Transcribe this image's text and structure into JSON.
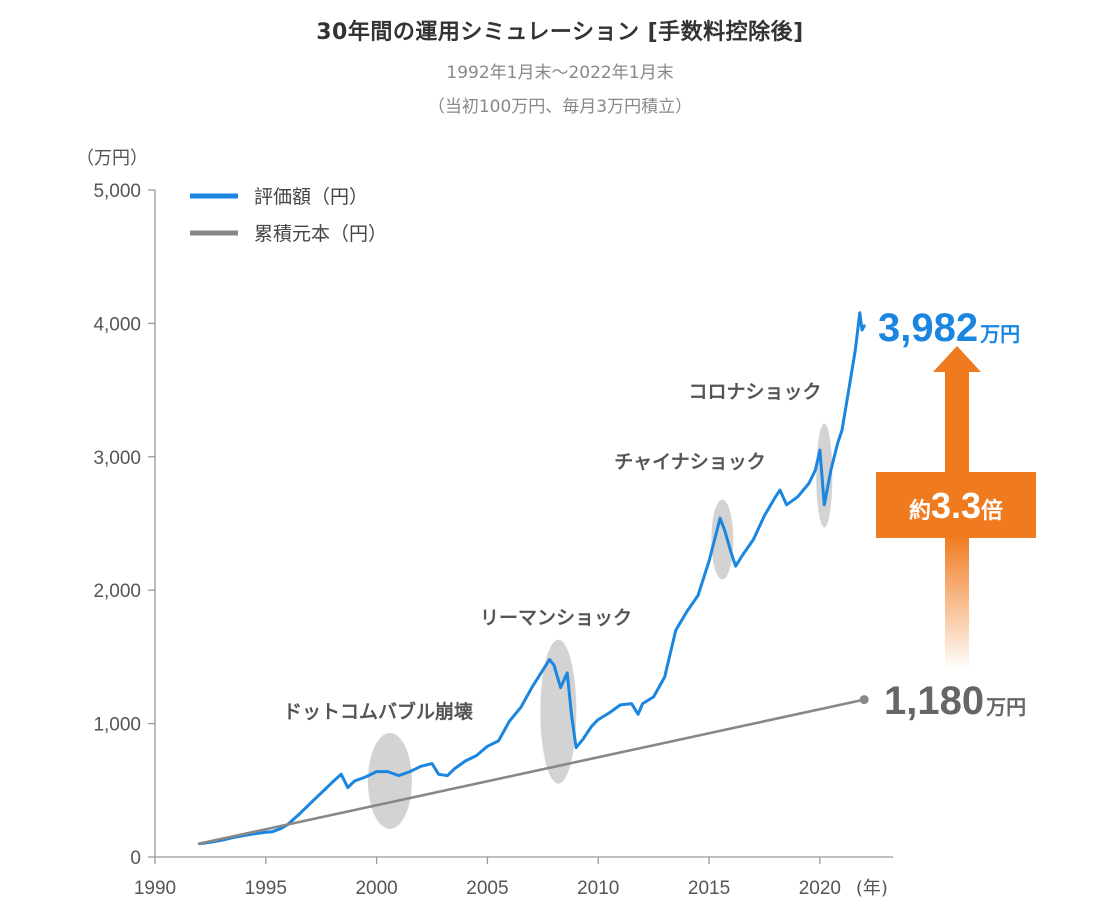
{
  "header": {
    "title": "30年間の運用シミュレーション [手数料控除後]",
    "subtitle_period": "1992年1月末〜2022年1月末",
    "subtitle_condition": "（当初100万円、毎月3万円積立）"
  },
  "chart_data": {
    "type": "line",
    "ylabel": "（万円）",
    "xlabel": "(年)",
    "xlim": [
      1990,
      2023.3
    ],
    "ylim": [
      0,
      5000
    ],
    "x_ticks": [
      "1990",
      "1995",
      "2000",
      "2005",
      "2010",
      "2015",
      "2020"
    ],
    "y_ticks": [
      "0",
      "1,000",
      "2,000",
      "3,000",
      "4,000",
      "5,000"
    ],
    "legend": {
      "placement": "top-left"
    },
    "series": [
      {
        "name": "評価額（円）",
        "color": "#1a86e0",
        "points": [
          [
            1992.0,
            100
          ],
          [
            1992.5,
            110
          ],
          [
            1993.0,
            125
          ],
          [
            1993.5,
            145
          ],
          [
            1994.0,
            160
          ],
          [
            1994.5,
            175
          ],
          [
            1995.0,
            185
          ],
          [
            1995.3,
            190
          ],
          [
            1995.7,
            215
          ],
          [
            1996.0,
            245
          ],
          [
            1996.5,
            320
          ],
          [
            1997.0,
            400
          ],
          [
            1997.5,
            480
          ],
          [
            1998.0,
            560
          ],
          [
            1998.4,
            620
          ],
          [
            1998.7,
            520
          ],
          [
            1999.0,
            570
          ],
          [
            1999.5,
            600
          ],
          [
            2000.0,
            640
          ],
          [
            2000.5,
            640
          ],
          [
            2001.0,
            610
          ],
          [
            2001.5,
            640
          ],
          [
            2002.0,
            680
          ],
          [
            2002.5,
            700
          ],
          [
            2002.8,
            620
          ],
          [
            2003.2,
            610
          ],
          [
            2003.5,
            660
          ],
          [
            2004.0,
            720
          ],
          [
            2004.5,
            760
          ],
          [
            2005.0,
            830
          ],
          [
            2005.5,
            870
          ],
          [
            2006.0,
            1020
          ],
          [
            2006.5,
            1120
          ],
          [
            2007.0,
            1270
          ],
          [
            2007.5,
            1400
          ],
          [
            2007.8,
            1480
          ],
          [
            2008.0,
            1440
          ],
          [
            2008.3,
            1270
          ],
          [
            2008.6,
            1380
          ],
          [
            2008.8,
            1060
          ],
          [
            2009.0,
            820
          ],
          [
            2009.3,
            880
          ],
          [
            2009.7,
            980
          ],
          [
            2010.0,
            1030
          ],
          [
            2010.5,
            1080
          ],
          [
            2011.0,
            1140
          ],
          [
            2011.5,
            1150
          ],
          [
            2011.8,
            1070
          ],
          [
            2012.0,
            1150
          ],
          [
            2012.5,
            1200
          ],
          [
            2013.0,
            1350
          ],
          [
            2013.5,
            1700
          ],
          [
            2014.0,
            1840
          ],
          [
            2014.5,
            1960
          ],
          [
            2015.0,
            2220
          ],
          [
            2015.5,
            2540
          ],
          [
            2015.7,
            2450
          ],
          [
            2016.0,
            2280
          ],
          [
            2016.2,
            2180
          ],
          [
            2016.5,
            2260
          ],
          [
            2017.0,
            2380
          ],
          [
            2017.5,
            2560
          ],
          [
            2018.0,
            2700
          ],
          [
            2018.2,
            2750
          ],
          [
            2018.5,
            2640
          ],
          [
            2019.0,
            2700
          ],
          [
            2019.5,
            2800
          ],
          [
            2019.8,
            2900
          ],
          [
            2020.0,
            3050
          ],
          [
            2020.2,
            2640
          ],
          [
            2020.5,
            2900
          ],
          [
            2020.8,
            3100
          ],
          [
            2021.0,
            3200
          ],
          [
            2021.3,
            3500
          ],
          [
            2021.6,
            3800
          ],
          [
            2021.8,
            4080
          ],
          [
            2021.9,
            3950
          ],
          [
            2022.0,
            3982
          ]
        ],
        "end_value": "3,982",
        "end_unit": "万円"
      },
      {
        "name": "累積元本（円）",
        "color": "#888888",
        "points": [
          [
            1992.0,
            100
          ],
          [
            2022.0,
            1180
          ]
        ],
        "end_value": "1,180",
        "end_unit": "万円"
      }
    ],
    "annotations": [
      {
        "label": "ドットコムバブル崩壊",
        "x": 2000.6,
        "y": 570
      },
      {
        "label": "リーマンショック",
        "x": 2008.2,
        "y": 1090
      },
      {
        "label": "チャイナショック",
        "x": 2015.6,
        "y": 2380
      },
      {
        "label": "コロナショック",
        "x": 2020.2,
        "y": 2860
      }
    ],
    "multiplier": {
      "prefix": "約",
      "value": "3.3",
      "suffix": "倍",
      "color": "#f07a1e"
    }
  }
}
